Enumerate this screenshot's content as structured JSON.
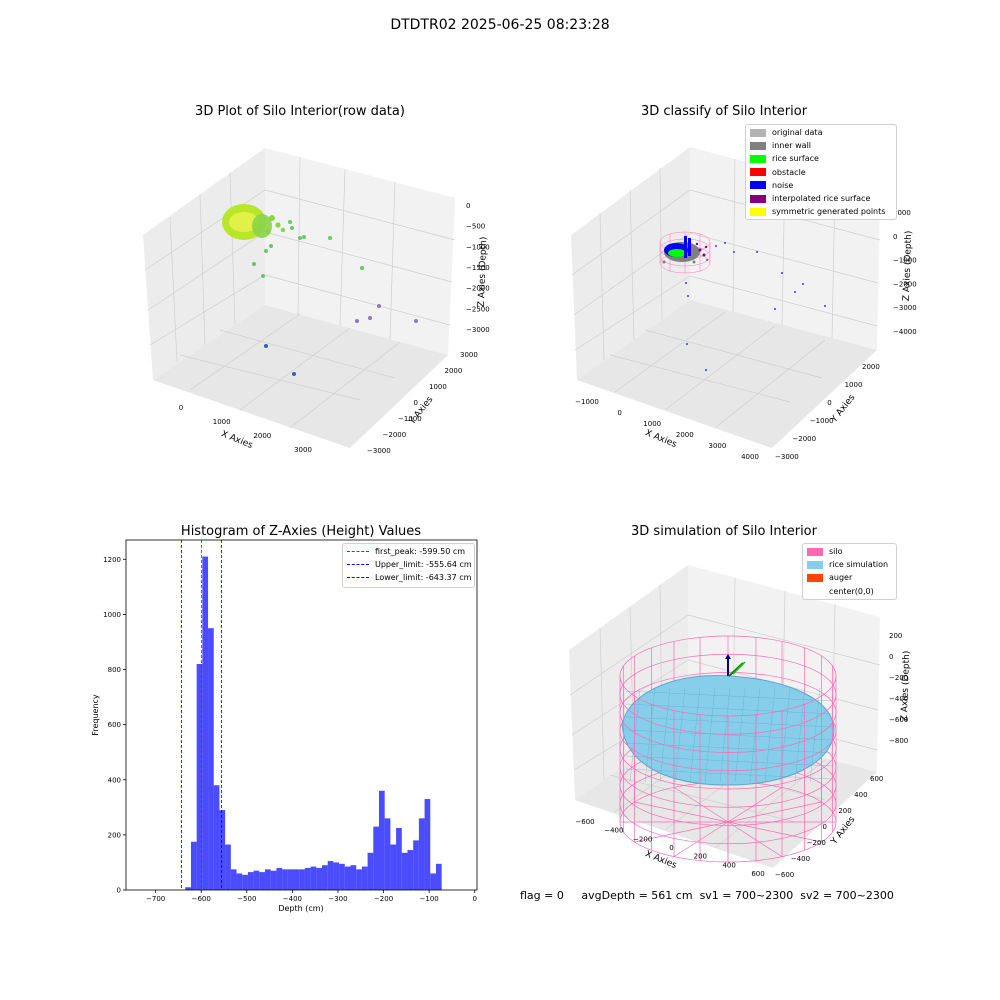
{
  "suptitle": "DTDTR02 2025-06-25 08:23:28",
  "panels": {
    "raw": {
      "title": "3D Plot of Silo Interior(row data)",
      "xlabel": "X Axies",
      "ylabel": "Y Axies",
      "zlabel": "Z Axies (Depth)",
      "xticks": [
        "0",
        "1000",
        "2000",
        "3000"
      ],
      "yticks": [
        "3000",
        "2000",
        "1000",
        "0",
        "−1000",
        "−2000",
        "−3000"
      ],
      "zticks": [
        "0",
        "−500",
        "−1000",
        "−1500",
        "−2000",
        "−2500",
        "−3000"
      ]
    },
    "classify": {
      "title": "3D classify of Silo Interior",
      "xlabel": "X Axies",
      "ylabel": "Y Axies",
      "zlabel": "Z Axies (Depth)",
      "xticks": [
        "−1000",
        "0",
        "1000",
        "2000",
        "3000",
        "4000"
      ],
      "yticks": [
        "2000",
        "1000",
        "0",
        "−1000",
        "−2000",
        "−3000"
      ],
      "zticks": [
        "1000",
        "0",
        "−1000",
        "−2000",
        "−3000",
        "−4000"
      ],
      "legend": [
        {
          "label": "original data",
          "color": "#b3b3b3"
        },
        {
          "label": "inner wall",
          "color": "#808080"
        },
        {
          "label": "rice surface",
          "color": "#00ff00"
        },
        {
          "label": "obstacle",
          "color": "#ff0000"
        },
        {
          "label": "noise",
          "color": "#0000ff"
        },
        {
          "label": "interpolated rice surface",
          "color": "#800080"
        },
        {
          "label": "symmetric generated points",
          "color": "#ffff00"
        }
      ]
    },
    "simulation": {
      "title": "3D simulation of Silo Interior",
      "xlabel": "X Axies",
      "ylabel": "Y Axies",
      "zlabel": "Z Axies (Depth)",
      "xticks": [
        "−600",
        "−400",
        "−200",
        "0",
        "200",
        "400",
        "600"
      ],
      "yticks": [
        "600",
        "400",
        "200",
        "0",
        "−200",
        "−400",
        "−600"
      ],
      "zticks": [
        "200",
        "0",
        "−200",
        "−400",
        "−600",
        "−800"
      ],
      "legend": [
        {
          "label": "silo",
          "color": "#ff69b4"
        },
        {
          "label": "rice simulation",
          "color": "#87ceeb"
        },
        {
          "label": "auger",
          "color": "#ff4500"
        },
        {
          "label": "center(0,0)",
          "color": ""
        }
      ]
    }
  },
  "chart_data": {
    "type": "bar",
    "title": "Histogram of Z-Axies (Height) Values",
    "xlabel": "Depth (cm)",
    "ylabel": "Frequency",
    "xlim": [
      -765,
      5
    ],
    "ylim": [
      0,
      1270
    ],
    "xticks": [
      -700,
      -600,
      -500,
      -400,
      -300,
      -200,
      -100,
      0
    ],
    "yticks": [
      0,
      200,
      400,
      600,
      800,
      1000,
      1200
    ],
    "bar_color": "#0000ff",
    "bin_start": -635,
    "bin_width": 12.5,
    "values": [
      10,
      175,
      820,
      1210,
      950,
      380,
      290,
      165,
      75,
      60,
      55,
      65,
      70,
      65,
      75,
      70,
      80,
      75,
      75,
      75,
      75,
      80,
      85,
      80,
      90,
      105,
      100,
      95,
      85,
      90,
      75,
      85,
      135,
      230,
      360,
      260,
      165,
      225,
      135,
      145,
      180,
      260,
      330,
      60,
      95
    ],
    "vlines": [
      {
        "label": "first_peak: -599.50 cm",
        "x": -599.5,
        "color": "#ff0000"
      },
      {
        "label": "Upper_limit: -555.64 cm",
        "x": -555.64,
        "color": "#0000ff"
      },
      {
        "label": "Lower_limit: -643.37 cm",
        "x": -643.37,
        "color": "#0000ff"
      }
    ],
    "legend_position": "upper right"
  },
  "footer": {
    "flag": "flag = 0",
    "avg": "avgDepth = 561 cm",
    "sv1": "sv1 = 700~2300",
    "sv2": "sv2 = 700~2300"
  }
}
